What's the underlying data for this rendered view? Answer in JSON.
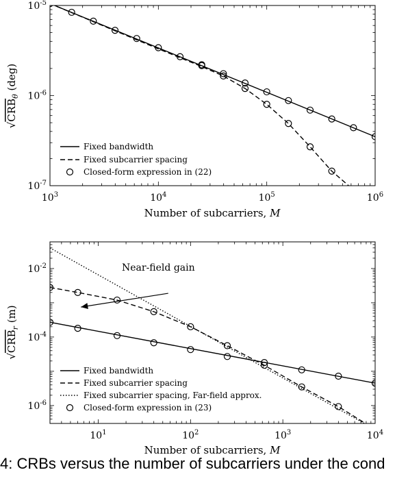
{
  "caption": "4: CRBs versus the number of subcarriers under the cond",
  "chart_data": [
    {
      "type": "line",
      "ylabel": "√CRB_θ (deg)",
      "ylabel_parts": {
        "radical": "√",
        "base": "CRB",
        "sub": "θ",
        "unit": " (deg)"
      },
      "xlabel": "Number of subcarriers, ",
      "xlabel_var": "M",
      "xscale": "log",
      "yscale": "log",
      "xlim": [
        1000,
        1000000
      ],
      "ylim": [
        1e-07,
        1e-05
      ],
      "xticks": [
        {
          "v": 1000,
          "base": "10",
          "exp": "3"
        },
        {
          "v": 10000,
          "base": "10",
          "exp": "4"
        },
        {
          "v": 100000,
          "base": "10",
          "exp": "5"
        },
        {
          "v": 1000000,
          "base": "10",
          "exp": "6"
        }
      ],
      "yticks": [
        {
          "v": 1e-07,
          "base": "10",
          "exp": "-7"
        },
        {
          "v": 1e-06,
          "base": "10",
          "exp": "-6"
        },
        {
          "v": 1e-05,
          "base": "10",
          "exp": "-5"
        }
      ],
      "legend_position": "bottom-left",
      "grid": false,
      "series": [
        {
          "name": "Fixed bandwidth",
          "style": "solid",
          "x": [
            1000,
            1000000
          ],
          "y": [
            1.05e-05,
            3.5e-07
          ]
        },
        {
          "name": "Fixed subcarrier spacing",
          "style": "dashed",
          "x": [
            1000,
            10000,
            25119,
            39811,
            63096,
            100000,
            158489,
            251189,
            398107,
            630957,
            1000000
          ],
          "y": [
            1.05e-05,
            3.3e-06,
            2.1e-06,
            1.65e-06,
            1.2e-06,
            8e-07,
            4.9e-07,
            2.7e-07,
            1.45e-07,
            9e-08,
            8e-08
          ]
        },
        {
          "name": "Closed-form expression in (22)",
          "style": "circle",
          "x": [
            1000,
            1585,
            2512,
            3981,
            6310,
            10000,
            15849,
            25119,
            39811,
            63096,
            100000,
            158489,
            251189,
            398107,
            630957,
            1000000,
            25119,
            39811,
            63096,
            100000,
            158489,
            251189,
            398107
          ],
          "y": [
            1.05e-05,
            8.4e-06,
            6.7e-06,
            5.3e-06,
            4.3e-06,
            3.4e-06,
            2.7e-06,
            2.15e-06,
            1.75e-06,
            1.38e-06,
            1.1e-06,
            8.8e-07,
            6.9e-07,
            5.5e-07,
            4.4e-07,
            3.5e-07,
            2.2e-06,
            1.65e-06,
            1.2e-06,
            8e-07,
            4.9e-07,
            2.7e-07,
            1.45e-07
          ]
        }
      ]
    },
    {
      "type": "line",
      "ylabel": "√CRB_r (m)",
      "ylabel_parts": {
        "radical": "√",
        "base": "CRB",
        "sub": "r",
        "unit": " (m)"
      },
      "xlabel": "Number of subcarriers, ",
      "xlabel_var": "M",
      "xscale": "log",
      "yscale": "log",
      "xlim": [
        3,
        10000
      ],
      "ylim": [
        3e-07,
        0.06
      ],
      "xticks": [
        {
          "v": 10,
          "base": "10",
          "exp": "1"
        },
        {
          "v": 100,
          "base": "10",
          "exp": "2"
        },
        {
          "v": 1000,
          "base": "10",
          "exp": "3"
        },
        {
          "v": 10000,
          "base": "10",
          "exp": "4"
        }
      ],
      "yticks": [
        {
          "v": 1e-06,
          "base": "10",
          "exp": "-6"
        },
        {
          "v": 0.0001,
          "base": "10",
          "exp": "-4"
        },
        {
          "v": 0.01,
          "base": "10",
          "exp": "-2"
        }
      ],
      "legend_position": "bottom-left",
      "grid": false,
      "annotation": {
        "text": "Near-field gain",
        "x": 50,
        "y": 0.003,
        "arrow_to": {
          "x": 6.5,
          "y": 0.00075
        }
      },
      "series": [
        {
          "name": "Fixed bandwidth",
          "style": "solid",
          "x": [
            3,
            10000
          ],
          "y": [
            0.00027,
            4.5e-06
          ]
        },
        {
          "name": "Fixed subcarrier spacing",
          "style": "dashed",
          "x": [
            3,
            6,
            16,
            40,
            100,
            250,
            630,
            1600,
            4000,
            10000
          ],
          "y": [
            0.0028,
            0.002,
            0.0012,
            0.00055,
            0.0002,
            5.6e-05,
            1.5e-05,
            3.5e-06,
            9.3e-07,
            2e-07
          ]
        },
        {
          "name": "Fixed subcarrier spacing, Far-field approx.",
          "style": "dotted",
          "x": [
            3,
            10000
          ],
          "y": [
            0.04,
            2e-07
          ]
        },
        {
          "name": "Closed-form expression in (23)",
          "style": "circle",
          "x": [
            3,
            6,
            16,
            40,
            100,
            250,
            630,
            1600,
            4000,
            10000,
            3,
            6,
            16,
            40,
            100,
            250,
            630,
            1600,
            4000,
            10000
          ],
          "y": [
            0.00027,
            0.00018,
            0.00011,
            6.8e-05,
            4.3e-05,
            2.7e-05,
            1.8e-05,
            1.1e-05,
            7.2e-06,
            4.5e-06,
            0.0028,
            0.002,
            0.0012,
            0.00055,
            0.0002,
            5.6e-05,
            1.5e-05,
            3.5e-06,
            9.3e-07,
            2e-07
          ]
        }
      ]
    }
  ]
}
